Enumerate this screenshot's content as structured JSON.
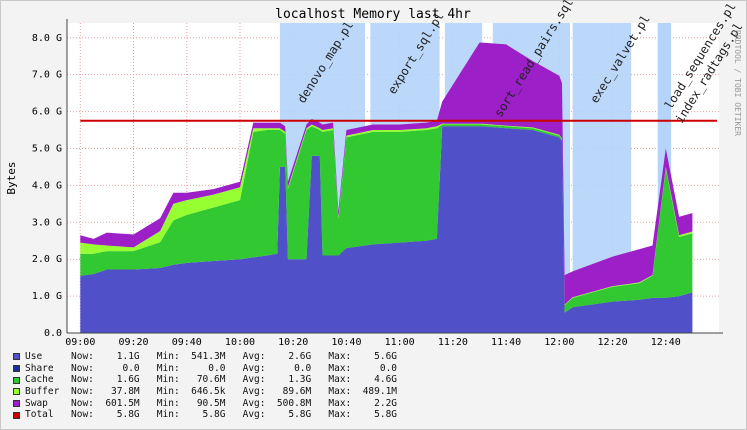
{
  "chart_data": {
    "type": "area",
    "title": "localhost Memory last 4hr",
    "ylabel": "Bytes",
    "watermark": "RRDTOOL / TOBI OETIKER",
    "ylim": [
      0,
      8.4
    ],
    "y_ticks": [
      "0.0",
      "1.0 G",
      "2.0 G",
      "3.0 G",
      "4.0 G",
      "5.0 G",
      "6.0 G",
      "7.0 G",
      "8.0 G"
    ],
    "xlim": [
      "08:55",
      "13:00"
    ],
    "x_ticks": [
      "09:00",
      "09:20",
      "09:40",
      "10:00",
      "10:20",
      "10:40",
      "11:00",
      "11:20",
      "11:40",
      "12:00",
      "12:20",
      "12:40"
    ],
    "grid": true,
    "annotations": [
      {
        "label": "denovo_map.pl",
        "start": "10:15",
        "end": "10:47"
      },
      {
        "label": "export_sql.pl",
        "start": "10:49",
        "end": "11:15"
      },
      {
        "label": "sort_read_pairs.sql",
        "start": "11:17",
        "end": "11:31"
      },
      {
        "label": "sort_read_pairs.sql",
        "start": "11:35",
        "end": "12:04"
      },
      {
        "label": "exec_valvet.pl",
        "start": "12:05",
        "end": "12:27"
      },
      {
        "label": "load_sequences.pl &",
        "start": "12:37",
        "end": "12:42"
      },
      {
        "label": "index_radtags.pl",
        "start": "12:37",
        "end": "12:42"
      }
    ],
    "annotation_labels": [
      "denovo_map.pl",
      "export_sql.pl",
      "sort_read_pairs.sql",
      "exec_valvet.pl",
      "load_sequences.pl &",
      "index_radtags.pl"
    ],
    "total_line": 5.75,
    "series": [
      {
        "name": "Use",
        "color": "#5050c8",
        "points": [
          [
            "09:00",
            1.55
          ],
          [
            "09:05",
            1.6
          ],
          [
            "09:10",
            1.72
          ],
          [
            "09:20",
            1.72
          ],
          [
            "09:30",
            1.76
          ],
          [
            "09:35",
            1.85
          ],
          [
            "09:40",
            1.9
          ],
          [
            "09:50",
            1.95
          ],
          [
            "10:00",
            2.0
          ],
          [
            "10:05",
            2.05
          ],
          [
            "10:10",
            2.1
          ],
          [
            "10:14",
            2.15
          ],
          [
            "10:15",
            4.5
          ],
          [
            "10:17",
            4.5
          ],
          [
            "10:18",
            2.0
          ],
          [
            "10:25",
            2.0
          ],
          [
            "10:27",
            4.8
          ],
          [
            "10:30",
            4.8
          ],
          [
            "10:31",
            2.1
          ],
          [
            "10:35",
            2.1
          ],
          [
            "10:37",
            2.1
          ],
          [
            "10:40",
            2.3
          ],
          [
            "10:50",
            2.4
          ],
          [
            "11:00",
            2.45
          ],
          [
            "11:10",
            2.5
          ],
          [
            "11:14",
            2.55
          ],
          [
            "11:16",
            5.6
          ],
          [
            "11:30",
            5.6
          ],
          [
            "11:31",
            5.6
          ],
          [
            "11:40",
            5.55
          ],
          [
            "11:50",
            5.5
          ],
          [
            "12:00",
            5.3
          ],
          [
            "12:01",
            5.2
          ],
          [
            "12:02",
            0.55
          ],
          [
            "12:05",
            0.7
          ],
          [
            "12:20",
            0.85
          ],
          [
            "12:30",
            0.9
          ],
          [
            "12:35",
            0.95
          ],
          [
            "12:40",
            0.95
          ],
          [
            "12:45",
            1.0
          ],
          [
            "12:50",
            1.1
          ]
        ]
      },
      {
        "name": "Share",
        "color": "#1c2ea0",
        "points": []
      },
      {
        "name": "Cache",
        "color": "#32c832",
        "points": [
          [
            "09:00",
            0.6
          ],
          [
            "09:05",
            0.55
          ],
          [
            "09:10",
            0.5
          ],
          [
            "09:20",
            0.5
          ],
          [
            "09:30",
            0.7
          ],
          [
            "09:35",
            1.2
          ],
          [
            "09:40",
            1.3
          ],
          [
            "09:50",
            1.45
          ],
          [
            "10:00",
            1.6
          ],
          [
            "10:02",
            3.4
          ],
          [
            "10:10",
            3.4
          ],
          [
            "10:14",
            3.35
          ],
          [
            "10:15",
            1.0
          ],
          [
            "10:17",
            0.9
          ],
          [
            "10:18",
            1.9
          ],
          [
            "10:25",
            3.5
          ],
          [
            "10:27",
            0.8
          ],
          [
            "10:30",
            0.7
          ],
          [
            "10:31",
            3.35
          ],
          [
            "10:35",
            3.4
          ],
          [
            "10:37",
            1.0
          ],
          [
            "10:40",
            3.0
          ],
          [
            "10:50",
            3.05
          ],
          [
            "11:00",
            3.0
          ],
          [
            "11:10",
            3.0
          ],
          [
            "11:14",
            3.0
          ],
          [
            "11:16",
            0.05
          ],
          [
            "11:30",
            0.05
          ],
          [
            "11:31",
            0.05
          ],
          [
            "11:40",
            0.05
          ],
          [
            "11:50",
            0.05
          ],
          [
            "12:00",
            0.05
          ],
          [
            "12:01",
            0.05
          ],
          [
            "12:02",
            0.2
          ],
          [
            "12:05",
            0.25
          ],
          [
            "12:20",
            0.4
          ],
          [
            "12:30",
            0.45
          ],
          [
            "12:35",
            0.6
          ],
          [
            "12:40",
            3.5
          ],
          [
            "12:45",
            1.6
          ],
          [
            "12:50",
            1.6
          ]
        ]
      },
      {
        "name": "Buffer",
        "color": "#96ff32",
        "points": [
          [
            "09:00",
            0.3
          ],
          [
            "09:05",
            0.25
          ],
          [
            "09:10",
            0.15
          ],
          [
            "09:20",
            0.1
          ],
          [
            "09:30",
            0.3
          ],
          [
            "09:35",
            0.45
          ],
          [
            "09:40",
            0.4
          ],
          [
            "09:50",
            0.35
          ],
          [
            "10:00",
            0.35
          ],
          [
            "10:02",
            0.1
          ],
          [
            "10:10",
            0.05
          ],
          [
            "10:14",
            0.05
          ],
          [
            "10:15",
            0.05
          ],
          [
            "10:17",
            0.05
          ],
          [
            "10:18",
            0.05
          ],
          [
            "10:25",
            0.05
          ],
          [
            "10:27",
            0.05
          ],
          [
            "10:30",
            0.05
          ],
          [
            "10:31",
            0.05
          ],
          [
            "10:35",
            0.05
          ],
          [
            "10:37",
            0.05
          ],
          [
            "10:40",
            0.05
          ],
          [
            "10:50",
            0.05
          ],
          [
            "11:00",
            0.05
          ],
          [
            "11:10",
            0.05
          ],
          [
            "11:14",
            0.05
          ],
          [
            "11:16",
            0.02
          ],
          [
            "11:30",
            0.02
          ],
          [
            "11:31",
            0.02
          ],
          [
            "11:40",
            0.02
          ],
          [
            "11:50",
            0.02
          ],
          [
            "12:00",
            0.02
          ],
          [
            "12:01",
            0.02
          ],
          [
            "12:02",
            0.02
          ],
          [
            "12:05",
            0.02
          ],
          [
            "12:20",
            0.02
          ],
          [
            "12:30",
            0.02
          ],
          [
            "12:35",
            0.02
          ],
          [
            "12:40",
            0.05
          ],
          [
            "12:45",
            0.05
          ],
          [
            "12:50",
            0.05
          ]
        ]
      },
      {
        "name": "Swap",
        "color": "#9d1fc8",
        "points": [
          [
            "09:00",
            0.2
          ],
          [
            "09:05",
            0.15
          ],
          [
            "09:10",
            0.35
          ],
          [
            "09:20",
            0.35
          ],
          [
            "09:30",
            0.35
          ],
          [
            "09:35",
            0.3
          ],
          [
            "09:40",
            0.2
          ],
          [
            "09:50",
            0.15
          ],
          [
            "10:00",
            0.15
          ],
          [
            "10:02",
            0.15
          ],
          [
            "10:10",
            0.15
          ],
          [
            "10:14",
            0.15
          ],
          [
            "10:15",
            0.15
          ],
          [
            "10:17",
            0.15
          ],
          [
            "10:18",
            0.15
          ],
          [
            "10:25",
            0.1
          ],
          [
            "10:27",
            0.15
          ],
          [
            "10:30",
            0.15
          ],
          [
            "10:31",
            0.15
          ],
          [
            "10:35",
            0.15
          ],
          [
            "10:37",
            0.15
          ],
          [
            "10:40",
            0.15
          ],
          [
            "10:50",
            0.15
          ],
          [
            "11:00",
            0.15
          ],
          [
            "11:10",
            0.15
          ],
          [
            "11:14",
            0.15
          ],
          [
            "11:16",
            0.6
          ],
          [
            "11:20",
            1.3
          ],
          [
            "11:25",
            2.2
          ],
          [
            "11:30",
            2.2
          ],
          [
            "11:31",
            2.2
          ],
          [
            "11:35",
            2.4
          ],
          [
            "11:40",
            2.2
          ],
          [
            "11:50",
            1.8
          ],
          [
            "12:00",
            1.6
          ],
          [
            "12:01",
            1.5
          ],
          [
            "12:02",
            0.8
          ],
          [
            "12:05",
            0.7
          ],
          [
            "12:20",
            0.8
          ],
          [
            "12:30",
            0.9
          ],
          [
            "12:35",
            0.8
          ],
          [
            "12:40",
            0.5
          ],
          [
            "12:45",
            0.5
          ],
          [
            "12:50",
            0.5
          ]
        ]
      },
      {
        "name": "Total",
        "color": "#cc0000",
        "points": []
      }
    ],
    "legend_headers": [
      "Now:",
      "Min:",
      "Avg:",
      "Max:"
    ],
    "legend": [
      {
        "name": "Use",
        "color": "#5050c8",
        "now": "1.1G",
        "min": "541.3M",
        "avg": "2.6G",
        "max": "5.6G"
      },
      {
        "name": "Share",
        "color": "#1c2ea0",
        "now": "0.0",
        "min": "0.0",
        "avg": "0.0",
        "max": "0.0"
      },
      {
        "name": "Cache",
        "color": "#32c832",
        "now": "1.6G",
        "min": "70.6M",
        "avg": "1.3G",
        "max": "4.6G"
      },
      {
        "name": "Buffer",
        "color": "#96ff32",
        "now": "37.8M",
        "min": "646.5k",
        "avg": "89.6M",
        "max": "489.1M"
      },
      {
        "name": "Swap",
        "color": "#9d1fc8",
        "now": "601.5M",
        "min": "90.5M",
        "avg": "500.8M",
        "max": "2.2G"
      },
      {
        "name": "Total",
        "color": "#cc0000",
        "now": "5.8G",
        "min": "5.8G",
        "avg": "5.8G",
        "max": "5.8G"
      }
    ]
  }
}
